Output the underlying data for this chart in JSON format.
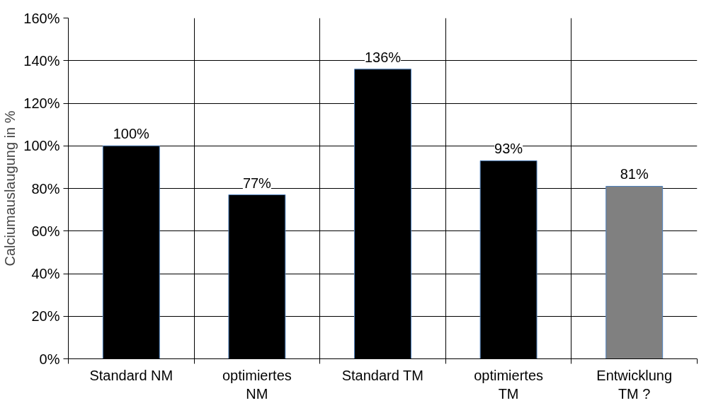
{
  "chart_data": {
    "type": "bar",
    "ylabel": "Calciumauslaugung in %",
    "categories": [
      "Standard NM",
      "optimiertes NM",
      "Standard TM",
      "optimiertes TM",
      "Entwicklung TM ?"
    ],
    "values": [
      100,
      77,
      136,
      93,
      81
    ],
    "colors": [
      "#000000",
      "#000000",
      "#000000",
      "#000000",
      "#808080"
    ],
    "value_labels": [
      "100%",
      "77%",
      "136%",
      "93%",
      "81%"
    ],
    "ylim": [
      0,
      160
    ],
    "yticks": [
      {
        "value": 0,
        "label": "0%"
      },
      {
        "value": 20,
        "label": "20%"
      },
      {
        "value": 40,
        "label": "40%"
      },
      {
        "value": 60,
        "label": "60%"
      },
      {
        "value": 80,
        "label": "80%"
      },
      {
        "value": 100,
        "label": "100%"
      },
      {
        "value": 120,
        "label": "120%"
      },
      {
        "value": 140,
        "label": "140%"
      },
      {
        "value": 160,
        "label": "160%"
      }
    ],
    "grid": true
  }
}
